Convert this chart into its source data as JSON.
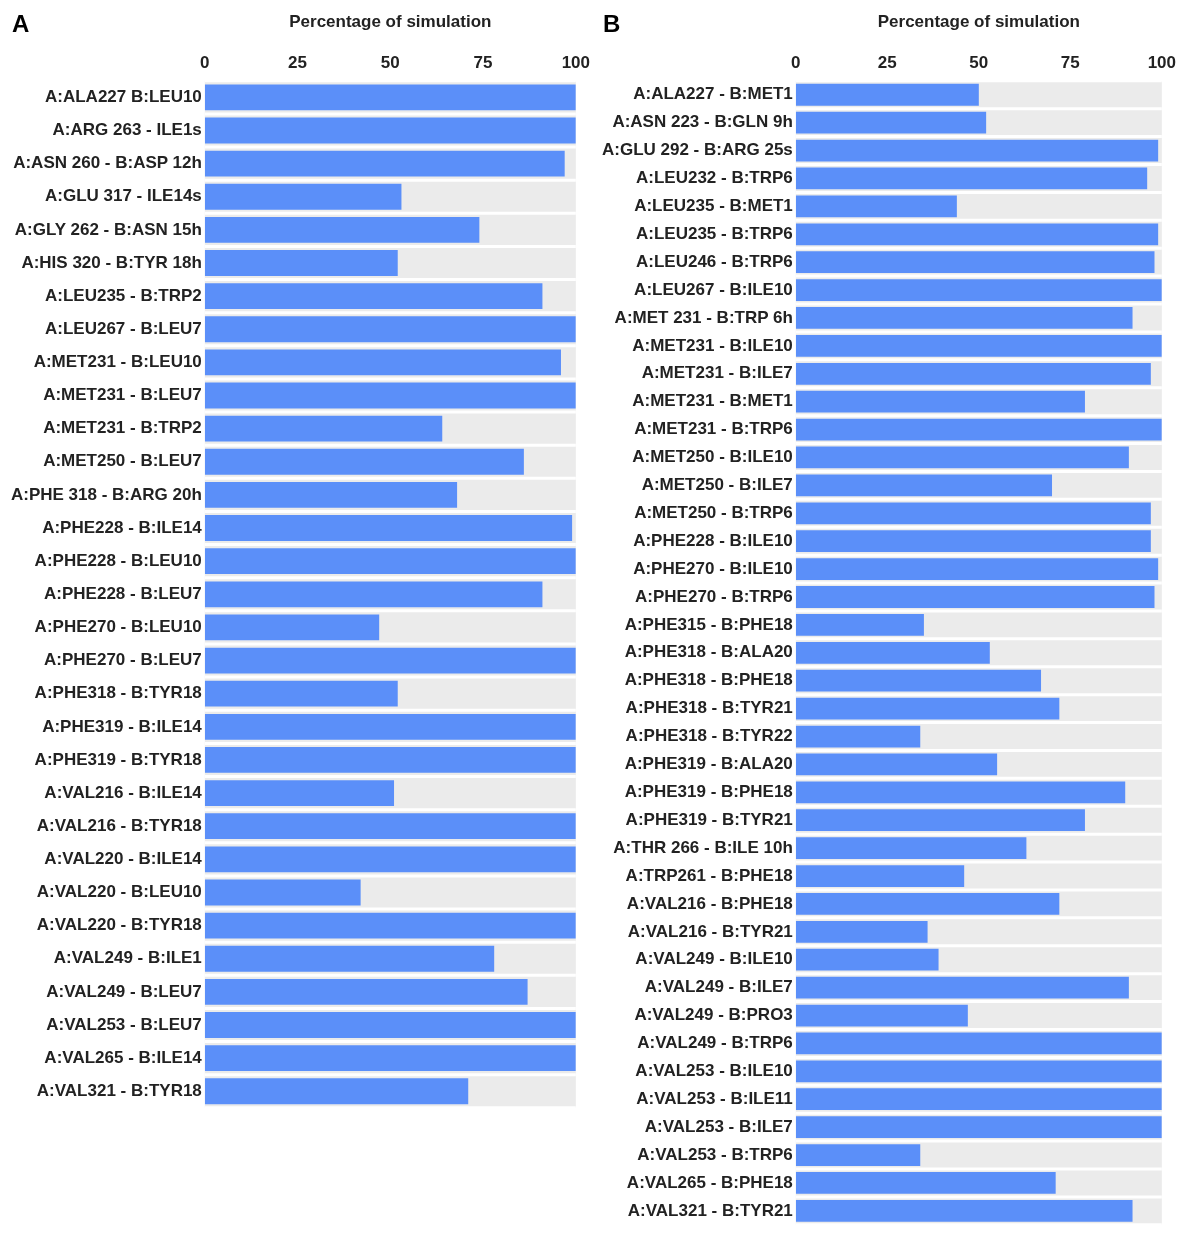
{
  "chart_data": [
    {
      "type": "bar",
      "orientation": "horizontal",
      "annotations": [
        "A"
      ],
      "xlabel": "Percentage of simulation",
      "color": "#5b8ff9",
      "xlim": [
        0,
        100
      ],
      "xticks": [
        0,
        25,
        50,
        75,
        100
      ],
      "grid": false,
      "legend": false,
      "categories": [
        "A:ALA227 B:LEU10",
        "A:ARG 263 - ILE1s",
        "A:ASN 260 - B:ASP 12h",
        "A:GLU 317 - ILE14s",
        "A:GLY 262 - B:ASN 15h",
        "A:HIS 320 - B:TYR 18h",
        "A:LEU235 - B:TRP2",
        "A:LEU267 - B:LEU7",
        "A:MET231 - B:LEU10",
        "A:MET231 - B:LEU7",
        "A:MET231 - B:TRP2",
        "A:MET250 - B:LEU7",
        "A:PHE 318 - B:ARG 20h",
        "A:PHE228 - B:ILE14",
        "A:PHE228 - B:LEU10",
        "A:PHE228 - B:LEU7",
        "A:PHE270 - B:LEU10",
        "A:PHE270 - B:LEU7",
        "A:PHE318 - B:TYR18",
        "A:PHE319 - B:ILE14",
        "A:PHE319 - B:TYR18",
        "A:VAL216 - B:ILE14",
        "A:VAL216 - B:TYR18",
        "A:VAL220 - B:ILE14",
        "A:VAL220 - B:LEU10",
        "A:VAL220 - B:TYR18",
        "A:VAL249 - B:ILE1",
        "A:VAL249 - B:LEU7",
        "A:VAL253 - B:LEU7",
        "A:VAL265 - B:ILE14",
        "A:VAL321 - B:TYR18"
      ],
      "values": [
        100,
        100,
        97,
        53,
        74,
        52,
        91,
        100,
        96,
        100,
        64,
        86,
        68,
        99,
        100,
        91,
        47,
        100,
        52,
        100,
        100,
        51,
        100,
        100,
        42,
        100,
        78,
        87,
        100,
        100,
        71
      ]
    },
    {
      "type": "bar",
      "orientation": "horizontal",
      "annotations": [
        "B"
      ],
      "xlabel": "Percentage of simulation",
      "color": "#5b8ff9",
      "xlim": [
        0,
        100
      ],
      "xticks": [
        0,
        25,
        50,
        75,
        100
      ],
      "grid": false,
      "legend": false,
      "categories": [
        "A:ALA227 - B:MET1",
        "A:ASN 223 - B:GLN 9h",
        "A:GLU 292 - B:ARG 25s",
        "A:LEU232 - B:TRP6",
        "A:LEU235 - B:MET1",
        "A:LEU235 - B:TRP6",
        "A:LEU246 - B:TRP6",
        "A:LEU267 - B:ILE10",
        "A:MET 231 - B:TRP 6h",
        "A:MET231 - B:ILE10",
        "A:MET231 - B:ILE7",
        "A:MET231 - B:MET1",
        "A:MET231 - B:TRP6",
        "A:MET250 - B:ILE10",
        "A:MET250 - B:ILE7",
        "A:MET250 - B:TRP6",
        "A:PHE228 - B:ILE10",
        "A:PHE270 - B:ILE10",
        "A:PHE270 - B:TRP6",
        "A:PHE315 - B:PHE18",
        "A:PHE318 - B:ALA20",
        "A:PHE318 - B:PHE18",
        "A:PHE318 - B:TYR21",
        "A:PHE318 - B:TYR22",
        "A:PHE319 - B:ALA20",
        "A:PHE319 - B:PHE18",
        "A:PHE319 - B:TYR21",
        "A:THR 266 - B:ILE 10h",
        "A:TRP261 - B:PHE18",
        "A:VAL216 - B:PHE18",
        "A:VAL216 - B:TYR21",
        "A:VAL249 - B:ILE10",
        "A:VAL249 - B:ILE7",
        "A:VAL249 - B:PRO3",
        "A:VAL249 - B:TRP6",
        "A:VAL253 - B:ILE10",
        "A:VAL253 - B:ILE11",
        "A:VAL253 - B:ILE7",
        "A:VAL253 - B:TRP6",
        "A:VAL265 - B:PHE18",
        "A:VAL321 - B:TYR21"
      ],
      "values": [
        50,
        52,
        99,
        96,
        44,
        99,
        98,
        100,
        92,
        100,
        97,
        79,
        100,
        91,
        70,
        97,
        97,
        99,
        98,
        35,
        53,
        67,
        72,
        34,
        55,
        90,
        79,
        63,
        46,
        72,
        36,
        39,
        91,
        47,
        100,
        100,
        100,
        100,
        34,
        71,
        92
      ]
    }
  ]
}
